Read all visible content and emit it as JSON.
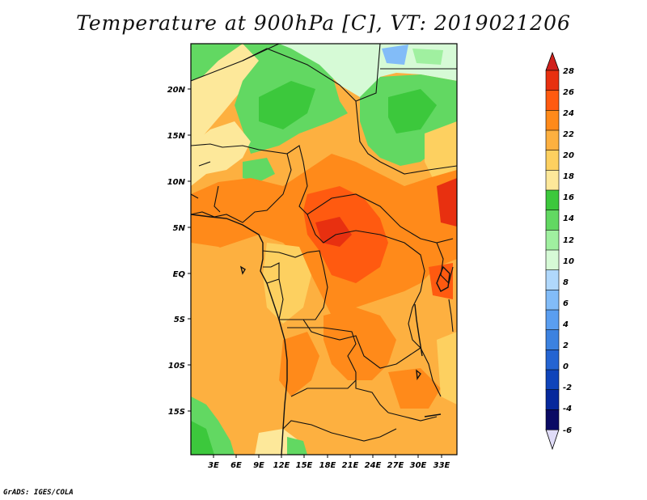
{
  "title": "Temperature at 900hPa [C], VT: 2019021206",
  "map": {
    "lat_labels": [
      "20N",
      "15N",
      "10N",
      "5N",
      "EQ",
      "5S",
      "10S",
      "15S"
    ],
    "lon_labels": [
      "3E",
      "6E",
      "9E",
      "12E",
      "15E",
      "18E",
      "21E",
      "24E",
      "27E",
      "30E",
      "33E"
    ],
    "region": "Central Africa",
    "variable": "Temperature",
    "units": "C"
  },
  "colorbar": {
    "labels": [
      "28",
      "26",
      "24",
      "22",
      "20",
      "18",
      "16",
      "14",
      "12",
      "10",
      "8",
      "6",
      "4",
      "2",
      "0",
      "-2",
      "-4",
      "-6"
    ],
    "colors": [
      "#e83010",
      "#ff5a10",
      "#ff8a1a",
      "#fdb040",
      "#fdd060",
      "#fde89a",
      "#3cc83c",
      "#62d862",
      "#a0f0a0",
      "#d6fad6",
      "#b0d8fc",
      "#82bcf8",
      "#5a9ef0",
      "#3c82e0",
      "#2464d2",
      "#0f44ba",
      "#06289c",
      "#0a0a64"
    ],
    "top_arrow_color": "#d0201c",
    "bottom_arrow_color": "#e0dcf8"
  },
  "credit": "GrADS: IGES/COLA"
}
